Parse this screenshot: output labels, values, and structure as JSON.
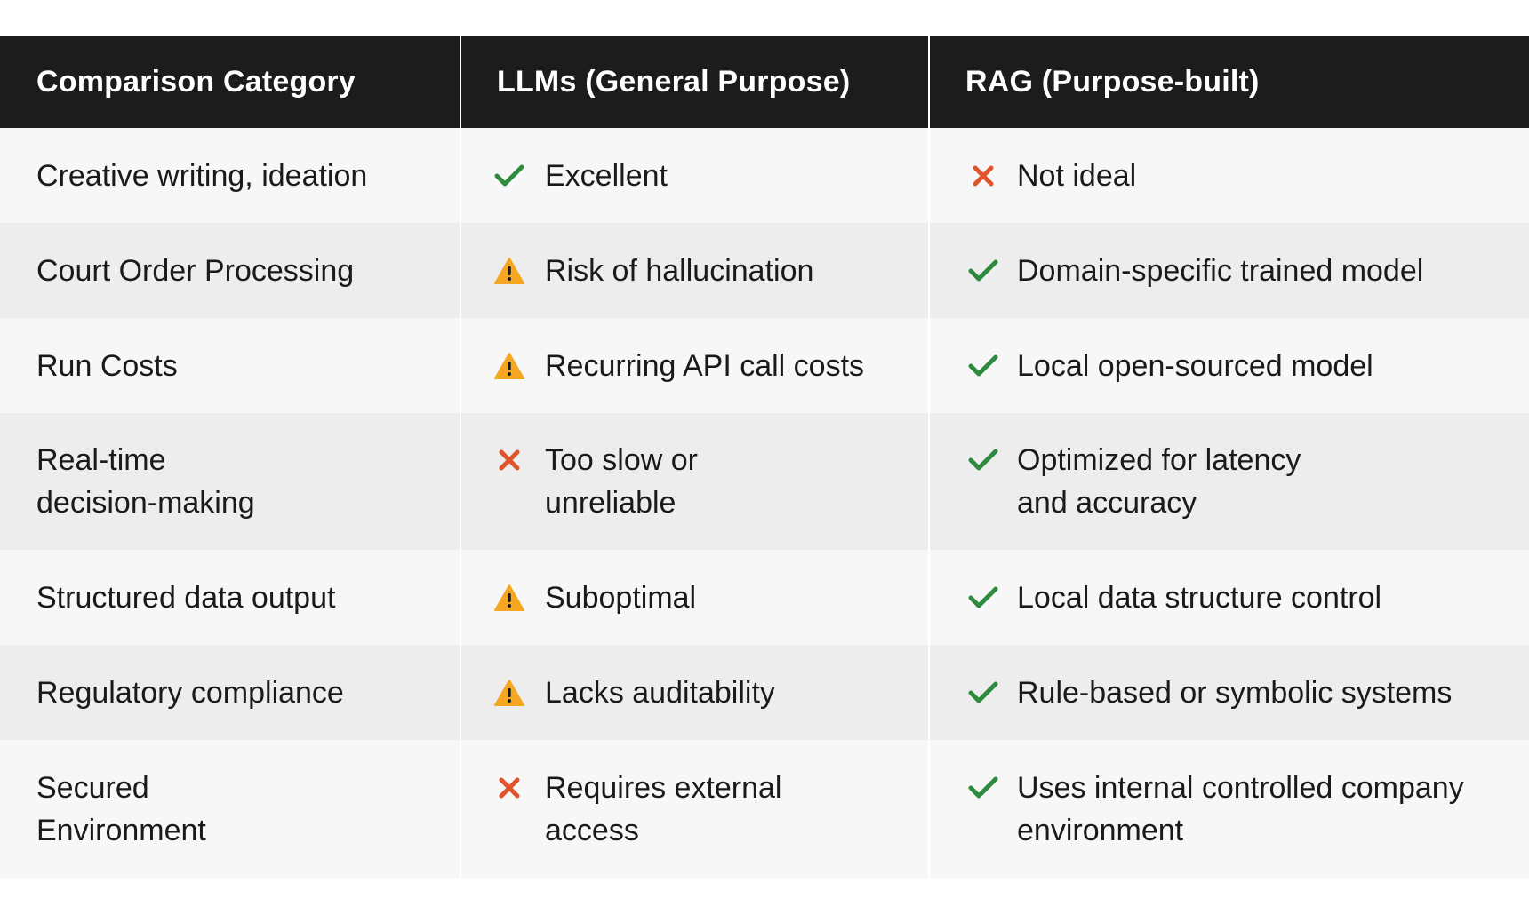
{
  "colors": {
    "header_bg": "#1c1c1c",
    "header_text": "#ffffff",
    "row_light": "#f7f7f7",
    "row_dark": "#ededed",
    "check": "#2e8b3e",
    "cross": "#e0532b",
    "warning": "#f5a623"
  },
  "headers": {
    "category": "Comparison Category",
    "llms": "LLMs (General Purpose)",
    "rag": "RAG (Purpose-built)"
  },
  "rows": [
    {
      "category": "Creative writing, ideation",
      "llms": {
        "icon": "check-icon",
        "text": "Excellent"
      },
      "rag": {
        "icon": "cross-icon",
        "text": "Not ideal"
      }
    },
    {
      "category": "Court Order Processing",
      "llms": {
        "icon": "warning-icon",
        "text": "Risk of hallucination"
      },
      "rag": {
        "icon": "check-icon",
        "text": "Domain-specific trained model"
      }
    },
    {
      "category": "Run Costs",
      "llms": {
        "icon": "warning-icon",
        "text": "Recurring API call costs"
      },
      "rag": {
        "icon": "check-icon",
        "text": "Local open-sourced model"
      }
    },
    {
      "category": "Real-time\ndecision-making",
      "llms": {
        "icon": "cross-icon",
        "text": "Too slow or\nunreliable"
      },
      "rag": {
        "icon": "check-icon",
        "text": "Optimized for latency\nand accuracy"
      }
    },
    {
      "category": "Structured data output",
      "llms": {
        "icon": "warning-icon",
        "text": "Suboptimal"
      },
      "rag": {
        "icon": "check-icon",
        "text": "Local data structure control"
      }
    },
    {
      "category": "Regulatory compliance",
      "llms": {
        "icon": "warning-icon",
        "text": "Lacks auditability"
      },
      "rag": {
        "icon": "check-icon",
        "text": "Rule-based or symbolic systems"
      }
    },
    {
      "category": "Secured\nEnvironment",
      "llms": {
        "icon": "cross-icon",
        "text": "Requires external\naccess"
      },
      "rag": {
        "icon": "check-icon",
        "text": "Uses internal controlled company\nenvironment"
      }
    }
  ]
}
